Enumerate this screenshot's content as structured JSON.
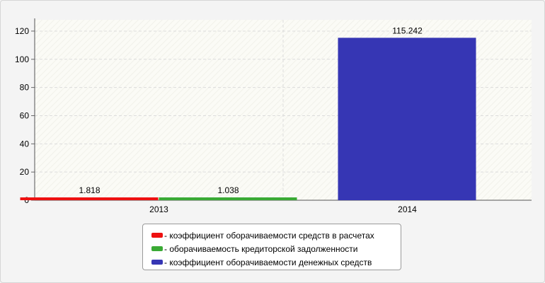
{
  "chart_data": {
    "type": "bar",
    "categories": [
      "2013",
      "2014"
    ],
    "series": [
      {
        "name": "- коэффициент оборачиваемости средств в расчетах",
        "color": "#ee1111",
        "values": [
          1.818,
          null
        ],
        "labels": [
          "1.818",
          ""
        ]
      },
      {
        "name": "- оборачиваемость кредиторской задолженности",
        "color": "#3aaa35",
        "values": [
          1.038,
          null
        ],
        "labels": [
          "1.038",
          ""
        ]
      },
      {
        "name": "- коэффициент оборачиваемости денежных средств",
        "color": "#3636b4",
        "values": [
          null,
          115.242
        ],
        "labels": [
          "",
          "115.242"
        ]
      }
    ],
    "y_ticks": [
      "0",
      "20",
      "40",
      "60",
      "80",
      "100",
      "120"
    ],
    "ylim": [
      0,
      128
    ],
    "grid": true,
    "legend_position": "bottom"
  }
}
